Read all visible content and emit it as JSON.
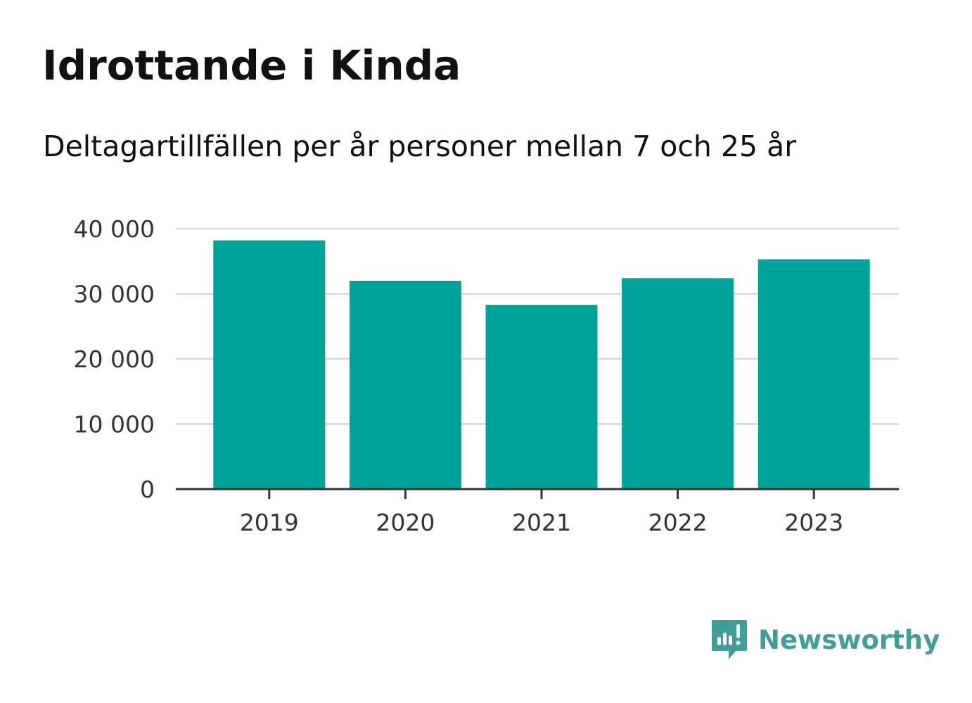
{
  "title": "Idrottande i Kinda",
  "subtitle": "Deltagartillfällen per år personer mellan 7 och 25 år",
  "chart_data": {
    "type": "bar",
    "categories": [
      "2019",
      "2020",
      "2021",
      "2022",
      "2023"
    ],
    "values": [
      38200,
      32000,
      28300,
      32400,
      35300
    ],
    "ylim": [
      0,
      40000
    ],
    "yticks": [
      0,
      10000,
      20000,
      30000,
      40000
    ],
    "ytick_labels": [
      "0",
      "10 000",
      "20 000",
      "30 000",
      "40 000"
    ],
    "xlabel": "",
    "ylabel": "",
    "grid": true,
    "bar_color": "#00a39a",
    "grid_color": "#dddddd",
    "axis_color": "#333333"
  },
  "brand": {
    "name": "Newsworthy",
    "color": "#3f9e96",
    "icon": "newsworthy-logo-icon"
  }
}
